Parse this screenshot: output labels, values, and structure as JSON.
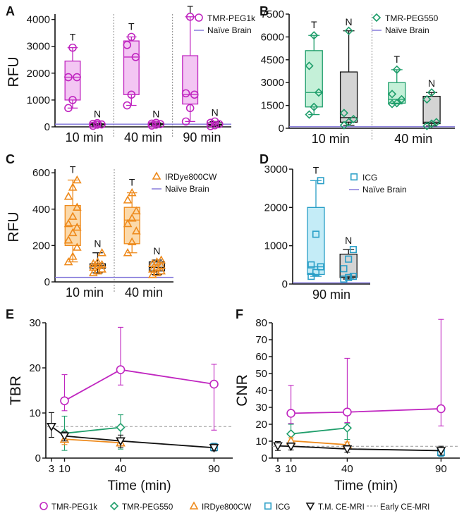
{
  "colors": {
    "PEG1k": "#c026c0",
    "PEG1k_fill": "#f3c6f3",
    "PEG550": "#1f9e6b",
    "PEG550_fill": "#c4f0d8",
    "IRD": "#ee8a1c",
    "IRD_fill": "#fbd9aa",
    "ICG": "#2a9fc7",
    "ICG_fill": "#c4ecf7",
    "N_fill": "#d4d4d4",
    "naive": "#7f73d9",
    "black": "#111111",
    "ref": "#999999"
  },
  "chart_data": [
    {
      "panel": "A",
      "type": "box",
      "ylabel": "RFU",
      "ylim": [
        0,
        4200
      ],
      "yticks": [
        0,
        1000,
        2000,
        3000,
        4000
      ],
      "groups": [
        "10 min",
        "40 min",
        "90 min"
      ],
      "legend": [
        "TMR-PEG1k",
        "Naïve Brain"
      ],
      "naive_level": 100,
      "boxes": [
        {
          "group": 0,
          "label": "T",
          "min": 700,
          "q1": 1000,
          "median": 1850,
          "q3": 2450,
          "max": 2950,
          "points": [
            700,
            1000,
            1850,
            1850,
            2950
          ]
        },
        {
          "group": 0,
          "label": "N",
          "min": 40,
          "q1": 70,
          "median": 90,
          "q3": 110,
          "max": 140,
          "points": [
            40,
            80,
            90,
            110,
            140
          ]
        },
        {
          "group": 1,
          "label": "T",
          "min": 800,
          "q1": 1200,
          "median": 2600,
          "q3": 3200,
          "max": 3350,
          "points": [
            800,
            1200,
            2600,
            3050,
            3350
          ]
        },
        {
          "group": 1,
          "label": "N",
          "min": 50,
          "q1": 80,
          "median": 100,
          "q3": 120,
          "max": 150,
          "points": [
            50,
            80,
            100,
            120,
            150
          ]
        },
        {
          "group": 2,
          "label": "T",
          "min": 200,
          "q1": 850,
          "median": 1200,
          "q3": 2650,
          "max": 4100,
          "points": [
            200,
            700,
            1200,
            1250,
            4100
          ]
        },
        {
          "group": 2,
          "label": "N",
          "min": 30,
          "q1": 60,
          "median": 90,
          "q3": 150,
          "max": 200,
          "points": [
            30,
            60,
            100,
            150,
            200
          ]
        }
      ]
    },
    {
      "panel": "B",
      "type": "box",
      "ylabel": "",
      "ylim": [
        0,
        7500
      ],
      "yticks": [
        0,
        1500,
        3000,
        4500,
        6000,
        7500
      ],
      "groups": [
        "10 min",
        "40 min"
      ],
      "legend": [
        "TMR-PEG550",
        "Naïve Brain"
      ],
      "naive_level": 100,
      "boxes": [
        {
          "group": 0,
          "label": "T",
          "min": 900,
          "q1": 1400,
          "median": 2350,
          "q3": 5100,
          "max": 6100,
          "points": [
            900,
            1400,
            2350,
            4100,
            6100
          ]
        },
        {
          "group": 0,
          "label": "N",
          "min": 200,
          "q1": 400,
          "median": 700,
          "q3": 3700,
          "max": 6400,
          "points": [
            200,
            400,
            600,
            1000,
            6400
          ]
        },
        {
          "group": 1,
          "label": "T",
          "min": 1600,
          "q1": 1650,
          "median": 1900,
          "q3": 3000,
          "max": 3850,
          "points": [
            1600,
            1650,
            1900,
            2250,
            3850
          ]
        },
        {
          "group": 1,
          "label": "N",
          "min": 150,
          "q1": 300,
          "median": 400,
          "q3": 2100,
          "max": 2350,
          "points": [
            150,
            300,
            400,
            1900,
            2350
          ]
        }
      ]
    },
    {
      "panel": "C",
      "type": "box",
      "ylabel": "RFU",
      "ylim": [
        0,
        620
      ],
      "yticks": [
        0,
        200,
        400,
        600
      ],
      "groups": [
        "10 min",
        "40 min"
      ],
      "legend": [
        "IRDye800CW",
        "Naïve Brain"
      ],
      "naive_level": 25,
      "boxes": [
        {
          "group": 0,
          "label": "T",
          "min": 110,
          "q1": 200,
          "median": 310,
          "q3": 420,
          "max": 560,
          "points": [
            110,
            140,
            190,
            230,
            270,
            300,
            320,
            360,
            410,
            470,
            520,
            560
          ]
        },
        {
          "group": 0,
          "label": "N",
          "min": 50,
          "q1": 75,
          "median": 90,
          "q3": 100,
          "max": 160,
          "points": [
            50,
            60,
            70,
            80,
            90,
            95,
            100,
            110,
            160
          ]
        },
        {
          "group": 1,
          "label": "T",
          "min": 160,
          "q1": 210,
          "median": 340,
          "q3": 410,
          "max": 490,
          "points": [
            160,
            220,
            280,
            320,
            350,
            390,
            450,
            490
          ]
        },
        {
          "group": 1,
          "label": "N",
          "min": 40,
          "q1": 60,
          "median": 80,
          "q3": 110,
          "max": 120,
          "points": [
            40,
            50,
            60,
            70,
            80,
            90,
            100,
            110,
            120
          ]
        }
      ]
    },
    {
      "panel": "D",
      "type": "box",
      "ylabel": "",
      "ylim": [
        0,
        3000
      ],
      "yticks": [
        0,
        1000,
        2000,
        3000
      ],
      "groups": [
        "90 min"
      ],
      "legend": [
        "ICG",
        "Naïve Brain"
      ],
      "naive_level": 30,
      "boxes": [
        {
          "group": 0,
          "label": "T",
          "min": 200,
          "q1": 250,
          "median": 450,
          "q3": 2000,
          "max": 2700,
          "points": [
            200,
            300,
            450,
            500,
            1300,
            2700
          ]
        },
        {
          "group": 0,
          "label": "N",
          "min": 130,
          "q1": 170,
          "median": 200,
          "q3": 780,
          "max": 900,
          "points": [
            130,
            170,
            200,
            400,
            650,
            900
          ]
        }
      ]
    },
    {
      "panel": "E",
      "type": "line",
      "xlabel": "Time (min)",
      "ylabel": "TBR",
      "xlim": [
        0,
        100
      ],
      "ylim": [
        0,
        30
      ],
      "xticks": [
        3,
        10,
        40,
        90
      ],
      "yticks": [
        0,
        10,
        20,
        30
      ],
      "reference_line": 7,
      "series": [
        {
          "name": "TMR-PEG1k",
          "key": "PEG1k",
          "marker": "circle",
          "x": [
            10,
            40,
            90
          ],
          "y": [
            12.7,
            19.6,
            16.4
          ],
          "err_low": [
            10.5,
            16.2,
            6.2
          ],
          "err_high": [
            18.5,
            29.0,
            20.8
          ]
        },
        {
          "name": "TMR-PEG550",
          "key": "PEG550",
          "marker": "diamond",
          "x": [
            10,
            40
          ],
          "y": [
            5.5,
            6.8
          ],
          "err_low": [
            1.7,
            2.0
          ],
          "err_high": [
            9.3,
            9.6
          ]
        },
        {
          "name": "IRDye800CW",
          "key": "IRD",
          "marker": "triangle",
          "x": [
            10,
            40
          ],
          "y": [
            4.2,
            3.4
          ],
          "err_low": [
            3.0,
            2.7
          ],
          "err_high": [
            5.5,
            4.2
          ]
        },
        {
          "name": "ICG",
          "key": "ICG",
          "marker": "square",
          "x": [
            90
          ],
          "y": [
            2.4
          ],
          "err_low": [
            1.6
          ],
          "err_high": [
            3.3
          ]
        },
        {
          "name": "T.M. CE-MRI",
          "key": "black",
          "marker": "tri-down",
          "x": [
            3,
            10,
            40,
            90
          ],
          "y": [
            7.0,
            4.9,
            3.8,
            2.3
          ],
          "err_low": [
            4.6,
            3.8,
            2.3,
            1.6
          ],
          "err_high": [
            10.1,
            5.8,
            5.1,
            3.1
          ]
        }
      ]
    },
    {
      "panel": "F",
      "type": "line",
      "xlabel": "Time (min)",
      "ylabel": "CNR",
      "xlim": [
        0,
        100
      ],
      "ylim": [
        0,
        80
      ],
      "xticks": [
        3,
        10,
        40,
        90
      ],
      "yticks": [
        0,
        10,
        20,
        30,
        40,
        50,
        60,
        70,
        80
      ],
      "reference_line": 7,
      "series": [
        {
          "name": "TMR-PEG1k",
          "key": "PEG1k",
          "marker": "circle",
          "x": [
            10,
            40,
            90
          ],
          "y": [
            26.5,
            27.2,
            29.2
          ],
          "err_low": [
            20.5,
            21.0,
            19.0
          ],
          "err_high": [
            43.0,
            59.0,
            82.0
          ]
        },
        {
          "name": "TMR-PEG550",
          "key": "PEG550",
          "marker": "diamond",
          "x": [
            10,
            40
          ],
          "y": [
            14.3,
            17.8
          ],
          "err_low": [
            9.0,
            11.0
          ],
          "err_high": [
            20.0,
            20.5
          ]
        },
        {
          "name": "IRDye800CW",
          "key": "IRD",
          "marker": "triangle",
          "x": [
            10,
            40
          ],
          "y": [
            10.2,
            7.9
          ],
          "err_low": [
            8.5,
            6.5
          ],
          "err_high": [
            12.0,
            9.5
          ]
        },
        {
          "name": "ICG",
          "key": "ICG",
          "marker": "square",
          "x": [
            90
          ],
          "y": [
            3.5
          ],
          "err_low": [
            1.0
          ],
          "err_high": [
            6.0
          ]
        },
        {
          "name": "T.M. CE-MRI",
          "key": "black",
          "marker": "tri-down",
          "x": [
            3,
            10,
            40,
            90
          ],
          "y": [
            7.2,
            7.0,
            5.4,
            4.4
          ],
          "err_low": [
            4.5,
            4.8,
            3.5,
            1.8
          ],
          "err_high": [
            9.8,
            9.0,
            7.5,
            7.0
          ]
        }
      ]
    }
  ],
  "legend_bottom": [
    {
      "key": "PEG1k",
      "marker": "circle",
      "label": "TMR-PEG1k"
    },
    {
      "key": "PEG550",
      "marker": "diamond",
      "label": "TMR-PEG550"
    },
    {
      "key": "IRD",
      "marker": "triangle",
      "label": "IRDye800CW"
    },
    {
      "key": "ICG",
      "marker": "square",
      "label": "ICG"
    },
    {
      "key": "black",
      "marker": "tri-down",
      "label": "T.M. CE-MRI"
    },
    {
      "key": "ref",
      "marker": "dash",
      "label": "Early CE-MRI"
    }
  ]
}
